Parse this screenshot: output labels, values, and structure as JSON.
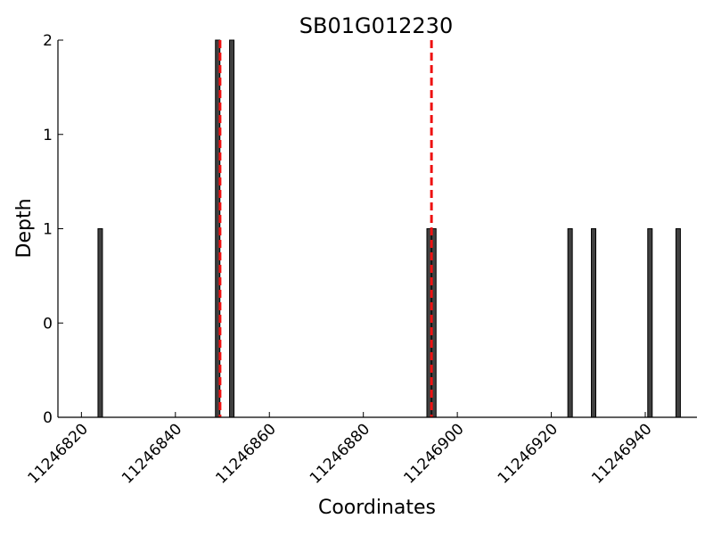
{
  "chart_data": {
    "type": "bar",
    "title": "SB01G012230",
    "xlabel": "Coordinates",
    "ylabel": "Depth",
    "xlim": [
      11246815,
      11246951
    ],
    "ylim": [
      0,
      2
    ],
    "x_ticks": [
      11246820,
      11246840,
      11246860,
      11246880,
      11246900,
      11246920,
      11246940
    ],
    "y_tick_labels": [
      "0",
      "0",
      "1",
      "1",
      "2"
    ],
    "bar_color": "#404040",
    "marker_color": "#ee1111",
    "grid": false,
    "bars": [
      {
        "x": 11246824,
        "depth": 1
      },
      {
        "x": 11246849,
        "depth": 2
      },
      {
        "x": 11246852,
        "depth": 2
      },
      {
        "x": 11246894,
        "depth": 1
      },
      {
        "x": 11246895,
        "depth": 1
      },
      {
        "x": 11246924,
        "depth": 1
      },
      {
        "x": 11246929,
        "depth": 1
      },
      {
        "x": 11246941,
        "depth": 1
      },
      {
        "x": 11246947,
        "depth": 1
      }
    ],
    "markers": [
      11246849.5,
      11246894.5
    ]
  }
}
